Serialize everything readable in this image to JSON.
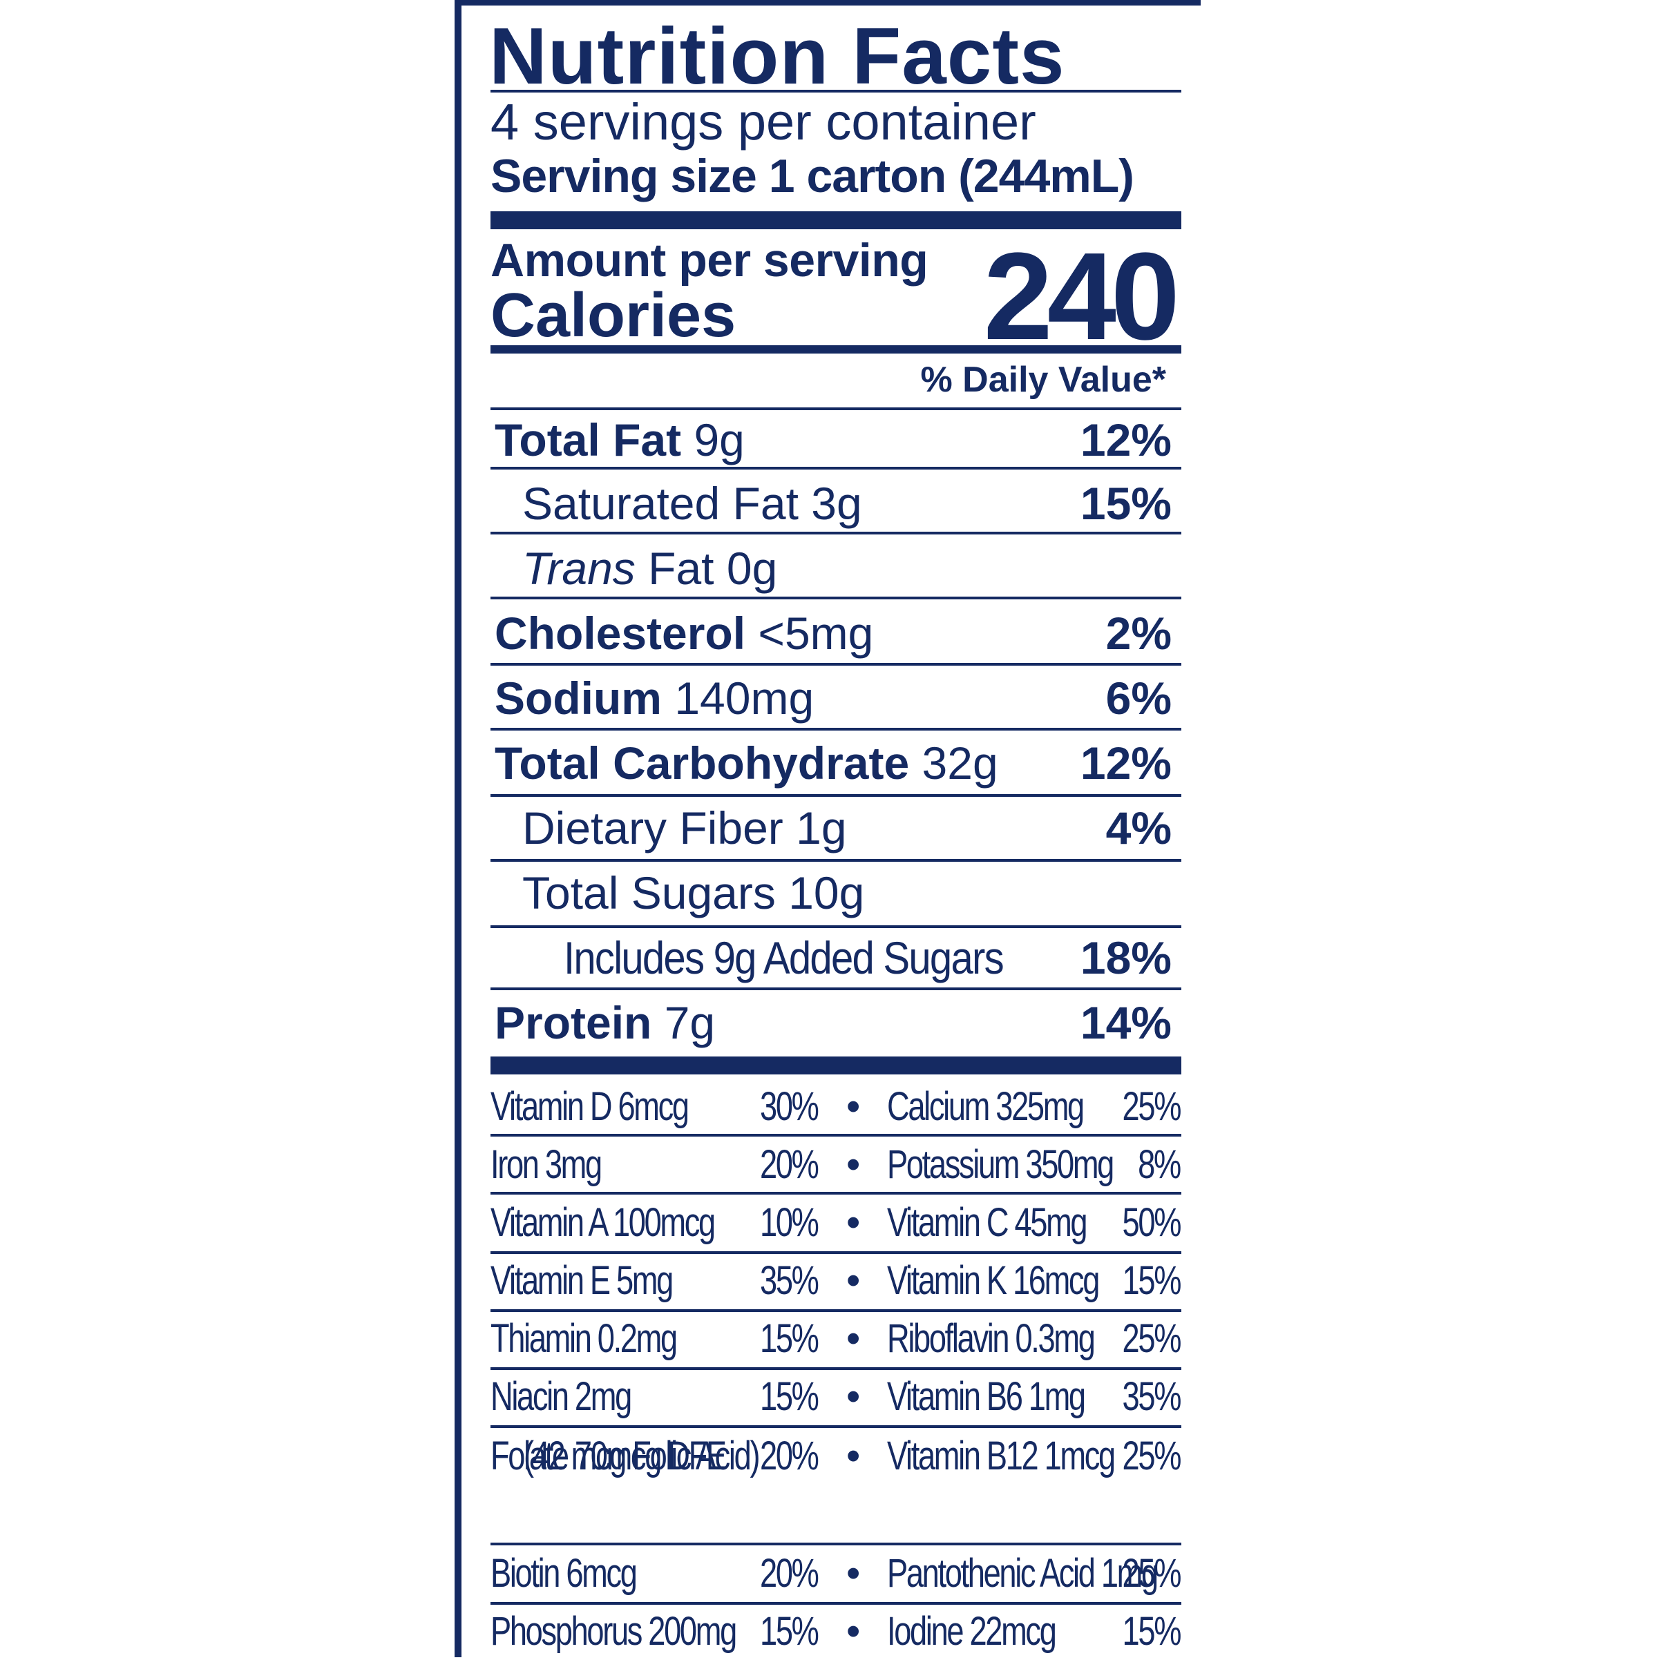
{
  "label": {
    "title": "Nutrition Facts",
    "servings_per_container": "4 servings per container",
    "serving_size": "Serving size 1 carton (244mL)",
    "amount_per_serving": "Amount per serving",
    "calories_label": "Calories",
    "calories_value": "240",
    "daily_value_header": "% Daily Value*"
  },
  "nutrients": [
    {
      "name": "Total Fat",
      "amount": "9g",
      "dv": "12%"
    },
    {
      "name": "Saturated Fat",
      "amount": "3g",
      "dv": "15%"
    },
    {
      "name": "Trans",
      "name_rest": "Fat",
      "amount": "0g",
      "dv": ""
    },
    {
      "name": "Cholesterol",
      "amount": "<5mg",
      "dv": "2%"
    },
    {
      "name": "Sodium",
      "amount": "140mg",
      "dv": "6%"
    },
    {
      "name": "Total Carbohydrate",
      "amount": "32g",
      "dv": "12%"
    },
    {
      "name": "Dietary Fiber",
      "amount": "1g",
      "dv": "4%"
    },
    {
      "name": "Total Sugars",
      "amount": "10g",
      "dv": ""
    },
    {
      "name": "Includes 9g Added Sugars",
      "amount": "",
      "dv": "18%"
    },
    {
      "name": "Protein",
      "amount": "7g",
      "dv": "14%"
    }
  ],
  "vitamins": [
    {
      "left": "Vitamin D 6mcg",
      "left_dv": "30%",
      "right": "Calcium 325mg",
      "right_dv": "25%"
    },
    {
      "left": "Iron 3mg",
      "left_dv": "20%",
      "right": "Potassium 350mg",
      "right_dv": "8%"
    },
    {
      "left": "Vitamin A 100mcg",
      "left_dv": "10%",
      "right": "Vitamin C 45mg",
      "right_dv": "50%"
    },
    {
      "left": "Vitamin E 5mg",
      "left_dv": "35%",
      "right": "Vitamin K 16mcg",
      "right_dv": "15%"
    },
    {
      "left": "Thiamin 0.2mg",
      "left_dv": "15%",
      "right": "Riboflavin 0.3mg",
      "right_dv": "25%"
    },
    {
      "left": "Niacin 2mg",
      "left_dv": "15%",
      "right": "Vitamin B6 1mg",
      "right_dv": "35%"
    },
    {
      "left": "Folate 70mcg DFE",
      "left_sub": "(42 mcg Folic Acid)",
      "left_dv": "20%",
      "right": "Vitamin B12 1mcg",
      "right_dv": "25%"
    },
    {
      "left": "Biotin 6mcg",
      "left_dv": "20%",
      "right": "Pantothenic Acid 1mg",
      "right_dv": "25%"
    },
    {
      "left": "Phosphorus 200mg",
      "left_dv": "15%",
      "right": "Iodine 22mcg",
      "right_dv": "15%"
    }
  ],
  "bullet": "•",
  "colors": {
    "ink": "#152a62",
    "background": "#ffffff"
  }
}
